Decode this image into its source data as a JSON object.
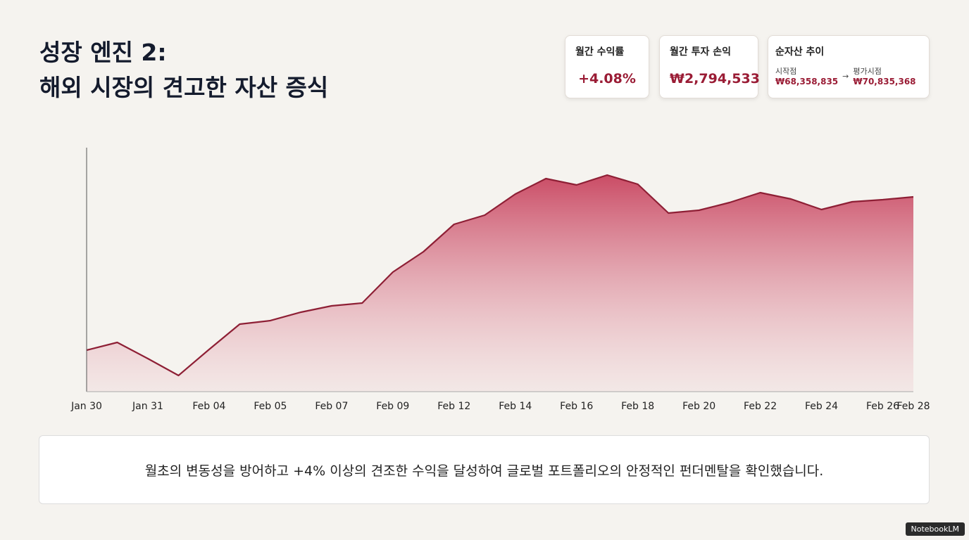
{
  "header": {
    "title_line1": "성장 엔진 2:",
    "title_line2": "해외 시장의 견고한 자산 증식"
  },
  "cards": [
    {
      "label": "월간 수익률",
      "value": "+4.08%"
    },
    {
      "label": "월간 투자 손익",
      "value": "₩2,794,533"
    },
    {
      "label": "순자산 추이",
      "start_label": "시작점",
      "start_value": "₩68,358,835",
      "arrow": "→",
      "end_label": "평가시점",
      "end_value": "₩70,835,368"
    }
  ],
  "chart_data": {
    "type": "area",
    "categories": [
      "Jan 30",
      null,
      "Jan 31",
      null,
      "Feb 04",
      null,
      "Feb 05",
      null,
      "Feb 07",
      null,
      "Feb 09",
      null,
      "Feb 12",
      null,
      "Feb 14",
      null,
      "Feb 16",
      null,
      "Feb 18",
      null,
      "Feb 20",
      null,
      "Feb 22",
      null,
      "Feb 24",
      null,
      "Feb 26",
      "Feb 28"
    ],
    "values": [
      68358835,
      68483800,
      68222500,
      67949900,
      68370200,
      68779200,
      68836000,
      68972300,
      69074500,
      69120000,
      69619800,
      69949200,
      70392300,
      70540000,
      70880800,
      71130700,
      71028400,
      71187500,
      71039800,
      70574000,
      70619500,
      70744400,
      70903500,
      70801200,
      70630800,
      70755800,
      70789900,
      70835368
    ],
    "color": "#8e1f35",
    "ylim": [
      67688600,
      71630500
    ]
  },
  "footnote": "월초의 변동성을 방어하고 +4% 이상의 견조한 수익을 달성하여 글로벌 포트폴리오의 안정적인 펀더멘탈을 확인했습니다.",
  "badge": "NotebookLM"
}
